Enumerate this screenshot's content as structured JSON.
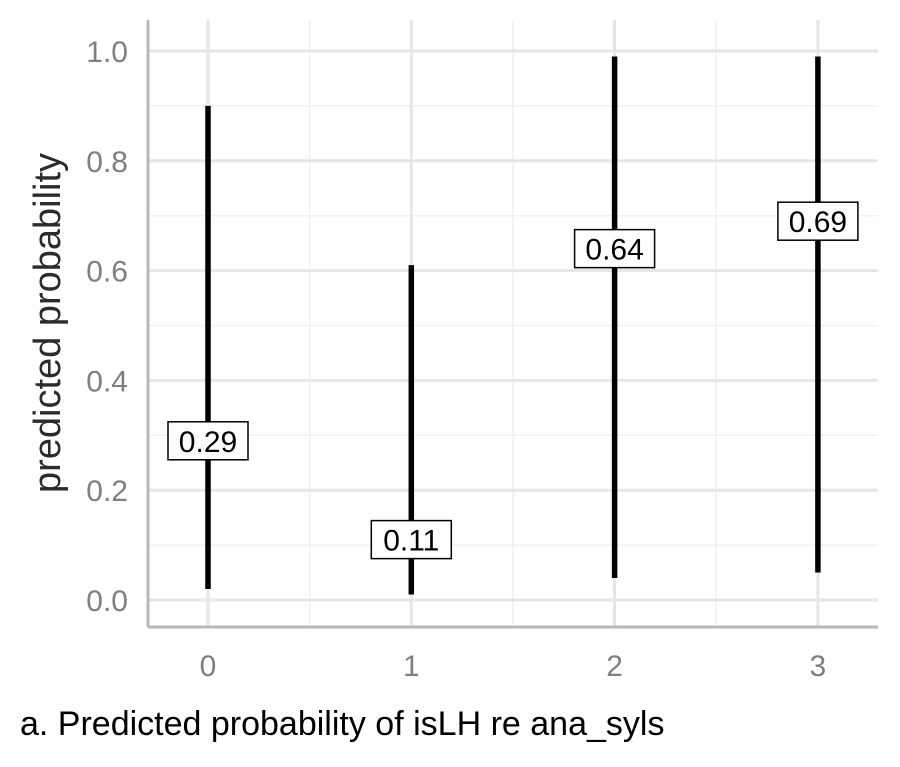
{
  "chart_data": {
    "type": "errorbar",
    "categories": [
      "0",
      "1",
      "2",
      "3"
    ],
    "estimates": [
      0.29,
      0.11,
      0.64,
      0.69
    ],
    "estimate_labels": [
      "0.29",
      "0.11",
      "0.64",
      "0.69"
    ],
    "lower": [
      0.02,
      0.01,
      0.04,
      0.05
    ],
    "upper": [
      0.9,
      0.61,
      0.99,
      0.99
    ],
    "ylabel": "predicted probability",
    "xlabel": "",
    "ylim": [
      -0.05,
      1.05
    ],
    "yticks": [
      0.0,
      0.2,
      0.4,
      0.6,
      0.8,
      1.0
    ],
    "ytick_labels": [
      "0.0",
      "0.2",
      "0.4",
      "0.6",
      "0.8",
      "1.0"
    ],
    "grid": true,
    "line_color": "#000000"
  },
  "caption": "a. Predicted probability of isLH re ana_syls"
}
